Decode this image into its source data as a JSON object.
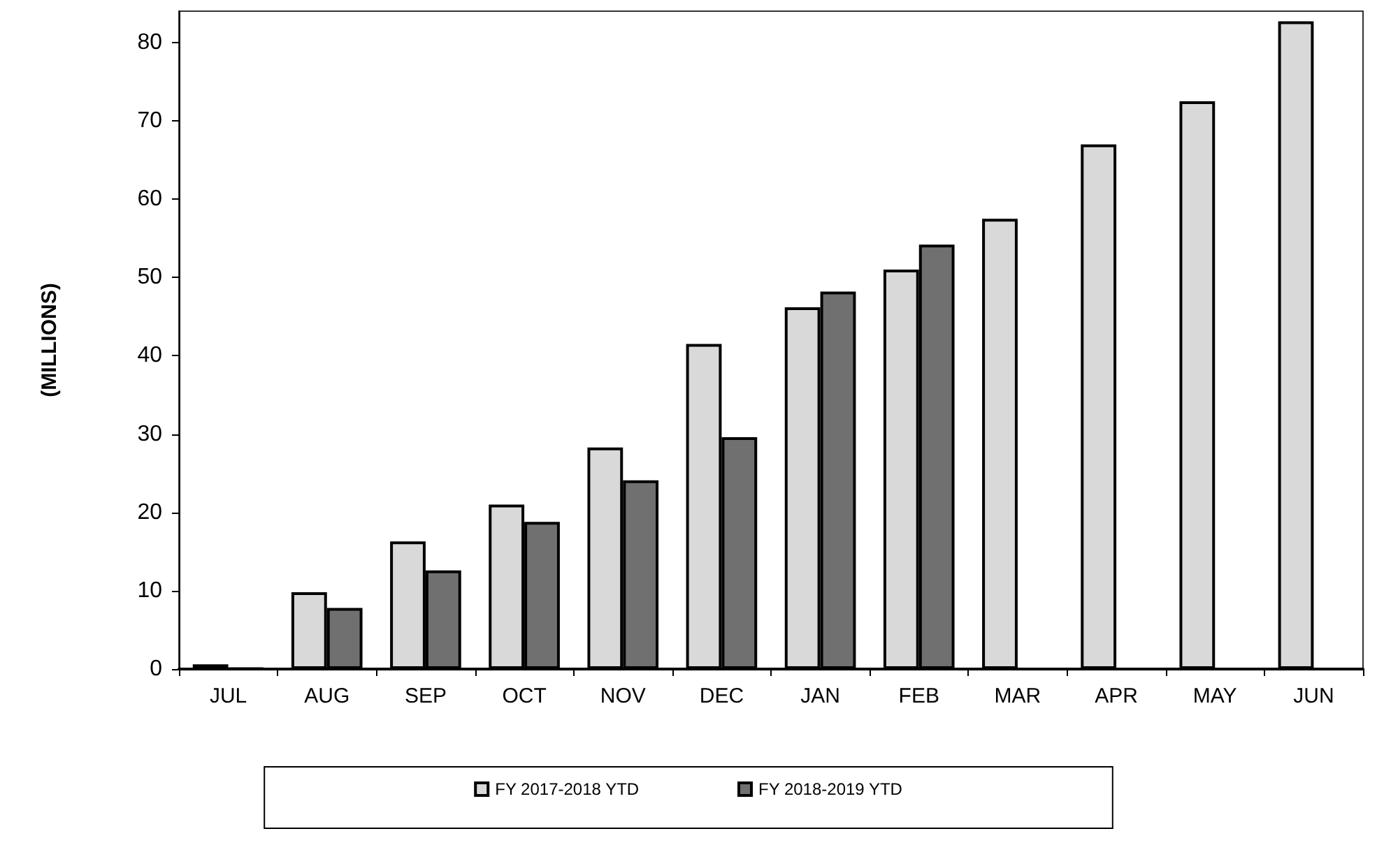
{
  "chart_data": {
    "type": "bar",
    "ylabel": "(MILLIONS)",
    "categories": [
      "JUL",
      "AUG",
      "SEP",
      "OCT",
      "NOV",
      "DEC",
      "JAN",
      "FEB",
      "MAR",
      "APR",
      "MAY",
      "JUN"
    ],
    "series": [
      {
        "name": "FY 2017-2018 YTD",
        "color": "#d9d9d9",
        "values": [
          0.6,
          9.8,
          16.3,
          21,
          28.3,
          41.5,
          46.2,
          51,
          57.5,
          67,
          72.5,
          82.7
        ]
      },
      {
        "name": "FY 2018-2019 YTD",
        "color": "#707070",
        "values": [
          0.1,
          7.8,
          12.6,
          18.8,
          24.1,
          29.6,
          48.2,
          54.2,
          null,
          null,
          null,
          null
        ]
      }
    ],
    "ylim": [
      0,
      84
    ],
    "yticks": [
      0,
      10,
      20,
      30,
      40,
      50,
      60,
      70,
      80
    ],
    "grid": false,
    "legend": "bottom"
  }
}
